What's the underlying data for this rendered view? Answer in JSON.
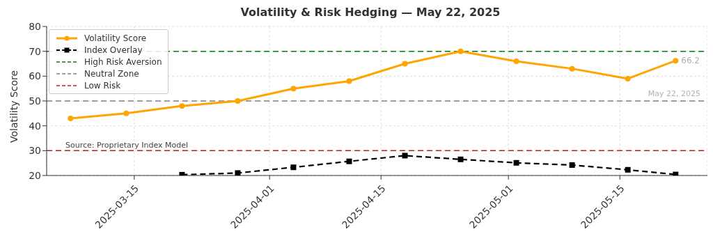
{
  "chart_data": {
    "type": "line",
    "title": "Volatility & Risk Hedging — May 22, 2025",
    "ylabel": "Volatility Score",
    "x": [
      "2025-03-07",
      "2025-03-14",
      "2025-03-21",
      "2025-03-28",
      "2025-04-04",
      "2025-04-11",
      "2025-04-18",
      "2025-04-25",
      "2025-05-02",
      "2025-05-09",
      "2025-05-16",
      "2025-05-22"
    ],
    "series": [
      {
        "name": "Volatility Score",
        "color": "#ffa500",
        "marker": "circle",
        "line_style": "solid",
        "values": [
          43,
          45,
          48,
          50,
          55,
          58,
          65,
          70,
          66,
          63,
          59,
          66.2
        ]
      },
      {
        "name": "Index Overlay",
        "color": "#000000",
        "marker": "square",
        "line_style": "dashed",
        "values": [
          null,
          null,
          20.3,
          21,
          23.3,
          25.7,
          28,
          26.5,
          25.1,
          24.2,
          22.3,
          20.4
        ]
      }
    ],
    "ref_lines": [
      {
        "axis": "y",
        "value": 70,
        "label": "High Risk Aversion",
        "color": "#008000",
        "line_style": "dashed"
      },
      {
        "axis": "y",
        "value": 50,
        "label": "Neutral Zone",
        "color": "#808080",
        "line_style": "dashed"
      },
      {
        "axis": "y",
        "value": 30,
        "label": "Low Risk",
        "color": "#b22222",
        "line_style": "dashed"
      }
    ],
    "annotations": [
      {
        "text": "66.2",
        "x": "2025-05-22",
        "y": 66.2
      },
      "May 22, 2025",
      "Source: Proprietary Index Model"
    ],
    "xlim": [
      "2025-03-04",
      "2025-05-26"
    ],
    "xticks": [
      "2025-03-15",
      "2025-04-01",
      "2025-04-15",
      "2025-05-01",
      "2025-05-15"
    ],
    "ylim": [
      20,
      80
    ],
    "yticks": [
      20,
      30,
      40,
      50,
      60,
      70,
      80
    ],
    "grid": true,
    "legend": "top left"
  }
}
